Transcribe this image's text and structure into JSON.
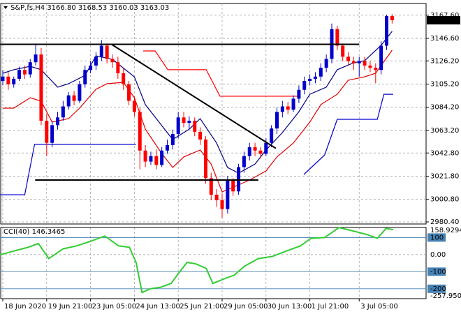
{
  "chart_data": [
    {
      "type": "candlestick",
      "title": "S&P,fs,H4  3166.80 3168.53 3160.03 3163.03",
      "categories": [
        "18 Jun 2020",
        null,
        null,
        null,
        null,
        null,
        null,
        null,
        "19 Jun 21:00",
        null,
        null,
        null,
        null,
        null,
        null,
        null,
        "23 Jun 05:00",
        null,
        null,
        null,
        null,
        null,
        null,
        null,
        "24 Jun 13:00",
        null,
        null,
        null,
        null,
        null,
        null,
        null,
        "25 Jun 21:00",
        null,
        null,
        null,
        null,
        null,
        null,
        null,
        "29 Jun 05:00",
        null,
        null,
        null,
        null,
        null,
        null,
        null,
        "30 Jun 13:00",
        null,
        null,
        null,
        null,
        null,
        null,
        null,
        "1 Jul 21:00",
        null,
        null,
        null,
        null,
        null,
        null,
        null,
        null,
        "3 Jul 05:00",
        null,
        null,
        null,
        null,
        null,
        null
      ],
      "open": [
        3108,
        3112,
        3105,
        3110,
        3118,
        3114,
        3125,
        3132,
        3072,
        3052,
        3068,
        3075,
        3085,
        3095,
        3090,
        3105,
        3118,
        3122,
        3130,
        3140,
        3128,
        3125,
        3115,
        3105,
        3090,
        3080,
        3045,
        3035,
        3040,
        3032,
        3045,
        3050,
        3060,
        3075,
        3070,
        3072,
        3062,
        3055,
        3020,
        3005,
        3000,
        2992,
        3018,
        3008,
        3030,
        3040,
        3048,
        3045,
        3042,
        3052,
        3065,
        3080,
        3085,
        3082,
        3092,
        3100,
        3108,
        3110,
        3112,
        3120,
        3128,
        3155,
        3140,
        3130,
        3126,
        3124,
        3126,
        3122,
        3120,
        3118,
        3140,
        3166.8
      ],
      "high": [
        3118,
        3116,
        3112,
        3121,
        3122,
        3128,
        3142,
        3138,
        3078,
        3072,
        3080,
        3090,
        3098,
        3099,
        3108,
        3122,
        3126,
        3134,
        3145,
        3142,
        3132,
        3130,
        3120,
        3108,
        3094,
        3084,
        3050,
        3044,
        3046,
        3048,
        3055,
        3064,
        3080,
        3080,
        3076,
        3075,
        3066,
        3058,
        3025,
        3010,
        3006,
        3022,
        3020,
        3033,
        3044,
        3052,
        3052,
        3048,
        3056,
        3068,
        3084,
        3090,
        3089,
        3095,
        3104,
        3112,
        3114,
        3116,
        3124,
        3132,
        3160,
        3158,
        3142,
        3134,
        3130,
        3130,
        3130,
        3126,
        3124,
        3144,
        3168,
        3168.53
      ],
      "low": [
        3104,
        3100,
        3102,
        3108,
        3110,
        3111,
        3122,
        3068,
        3040,
        3048,
        3064,
        3072,
        3082,
        3086,
        3088,
        3102,
        3115,
        3118,
        3126,
        3124,
        3120,
        3110,
        3100,
        3086,
        3076,
        3028,
        3030,
        3032,
        3028,
        3030,
        3042,
        3046,
        3056,
        3066,
        3065,
        3058,
        3050,
        3015,
        3000,
        2994,
        2984,
        2988,
        3004,
        3005,
        3025,
        3036,
        3040,
        3038,
        3040,
        3048,
        3060,
        3075,
        3078,
        3080,
        3088,
        3096,
        3104,
        3106,
        3108,
        3116,
        3124,
        3136,
        3126,
        3122,
        3118,
        3112,
        3118,
        3116,
        3106,
        3114,
        3136,
        3160.03
      ],
      "close": [
        3112,
        3105,
        3110,
        3118,
        3114,
        3125,
        3132,
        3072,
        3052,
        3068,
        3075,
        3085,
        3095,
        3090,
        3105,
        3118,
        3122,
        3130,
        3140,
        3128,
        3125,
        3115,
        3105,
        3090,
        3080,
        3045,
        3035,
        3040,
        3032,
        3045,
        3050,
        3060,
        3075,
        3070,
        3072,
        3062,
        3055,
        3020,
        3005,
        3000,
        2992,
        3018,
        3008,
        3030,
        3040,
        3048,
        3045,
        3042,
        3052,
        3065,
        3080,
        3085,
        3082,
        3092,
        3100,
        3108,
        3110,
        3112,
        3120,
        3128,
        3155,
        3140,
        3130,
        3126,
        3124,
        3126,
        3122,
        3120,
        3118,
        3140,
        3166.8,
        3163.03
      ],
      "up_color": "#0000cd",
      "down_color": "#ff0000",
      "ylim": [
        2978.5,
        3178.2
      ],
      "yticks": [
        {
          "value": 3167.6,
          "label": "3167.60"
        },
        {
          "value": 3146.6,
          "label": "3146.60"
        },
        {
          "value": 3126.2,
          "label": "3126.20"
        },
        {
          "value": 3105.2,
          "label": "3105.20"
        },
        {
          "value": 3084.2,
          "label": "3084.20"
        },
        {
          "value": 3063.2,
          "label": "3063.20"
        },
        {
          "value": 3042.8,
          "label": "3042.80"
        },
        {
          "value": 3021.8,
          "label": "3021.80"
        },
        {
          "value": 3000.8,
          "label": "3000.80"
        },
        {
          "value": 2980.4,
          "label": "2980.40"
        }
      ],
      "grid": true,
      "indicators": [
        {
          "color": "#000080",
          "x": [
            0,
            2,
            5,
            7,
            10,
            12,
            15,
            17,
            20,
            24,
            26,
            29,
            31,
            34,
            36,
            39,
            41,
            43,
            46,
            48,
            51,
            54,
            56,
            59,
            61,
            64,
            66,
            69,
            71
          ],
          "values": [
            3115,
            3118.2,
            3121.3,
            3118.2,
            3102.4,
            3105.5,
            3113.1,
            3130.8,
            3127.6,
            3111.8,
            3086.6,
            3067.6,
            3055,
            3064.4,
            3073.9,
            3051.8,
            3029.7,
            3024.6,
            3032.8,
            3045.5,
            3061.3,
            3080.2,
            3096,
            3102.4,
            3118.2,
            3124.5,
            3126.4,
            3140.3,
            3153
          ]
        },
        {
          "color": "#e00000",
          "x": [
            0,
            2,
            5,
            7,
            9,
            12,
            14,
            17,
            19,
            22,
            24,
            26,
            29,
            31,
            33,
            36,
            38,
            40,
            43,
            45,
            48,
            50,
            53,
            56,
            58,
            61,
            63,
            66,
            68,
            71
          ],
          "values": [
            3083.4,
            3083.4,
            3092.9,
            3089.7,
            3070.8,
            3073.9,
            3083.4,
            3100.5,
            3105.5,
            3106.8,
            3092.9,
            3064.4,
            3042.3,
            3029.7,
            3039.2,
            3045.5,
            3032.8,
            3007.6,
            3013.9,
            3018.3,
            3026.5,
            3039.2,
            3051.8,
            3070.8,
            3086.6,
            3096,
            3108.7,
            3111.8,
            3115,
            3135.9
          ]
        },
        {
          "color": "#0000cd",
          "x": [
            -0.5,
            4,
            5.8,
            24.3,
            40,
            54.9,
            58.7,
            61,
            68.3,
            69.5,
            71.2
          ],
          "values": [
            3005,
            3005,
            3050.6,
            3050.6,
            null,
            3023.4,
            3041,
            3073.3,
            3073.3,
            3096,
            3096
          ]
        },
        {
          "color": "#ff0000",
          "x": [
            25.6,
            27.8,
            30.1,
            37.1,
            39.6,
            54.3
          ],
          "values": [
            3135.2,
            3135.2,
            3118.2,
            3118.2,
            3094.2,
            3094.2
          ]
        }
      ],
      "trendlines": [
        {
          "color": "#000000",
          "x": [
            -0.5,
            65
          ],
          "values": [
            3141.2,
            3141.2
          ]
        },
        {
          "color": "#000000",
          "x": [
            5.9,
            46.6
          ],
          "values": [
            3018.3,
            3018.3
          ]
        },
        {
          "color": "#000000",
          "x": [
            19.9,
            49.8
          ],
          "values": [
            3141,
            3047
          ]
        }
      ]
    },
    {
      "type": "line",
      "title": "CCI(40) 146.3465",
      "color": "#32cd32",
      "x": [
        -0.5,
        2,
        4.6,
        6.5,
        8.4,
        11,
        13.5,
        16,
        18.6,
        21.1,
        23.1,
        24.3,
        25.4,
        26.9,
        28.8,
        30.7,
        32,
        33.6,
        35.2,
        37.1,
        38.3,
        40.3,
        42.2,
        44.1,
        46.6,
        49.2,
        51.7,
        54.3,
        56.2,
        58.7,
        61.3,
        63.2,
        66.4,
        68.3,
        69.9,
        71.2
      ],
      "values": [
        -1.3,
        20.7,
        42.8,
        64.8,
        -23.4,
        34,
        51.6,
        78.1,
        109,
        51.6,
        42.8,
        -45.4,
        -221.9,
        -199.8,
        -191,
        -169,
        -111.6,
        -45.4,
        -54.3,
        -80.7,
        -169,
        -142.5,
        -120.4,
        -67.5,
        -23.4,
        -10.1,
        20.7,
        51.6,
        95.7,
        100.1,
        158,
        144.2,
        117.8,
        95.7,
        153.1,
        146.3465
      ],
      "ylim": [
        -257.9503,
        158.9294
      ],
      "yticks": [
        100,
        {
          "value": 0,
          "label": "0.00"
        },
        -100,
        -200
      ],
      "level_color": "#4682b4"
    }
  ]
}
